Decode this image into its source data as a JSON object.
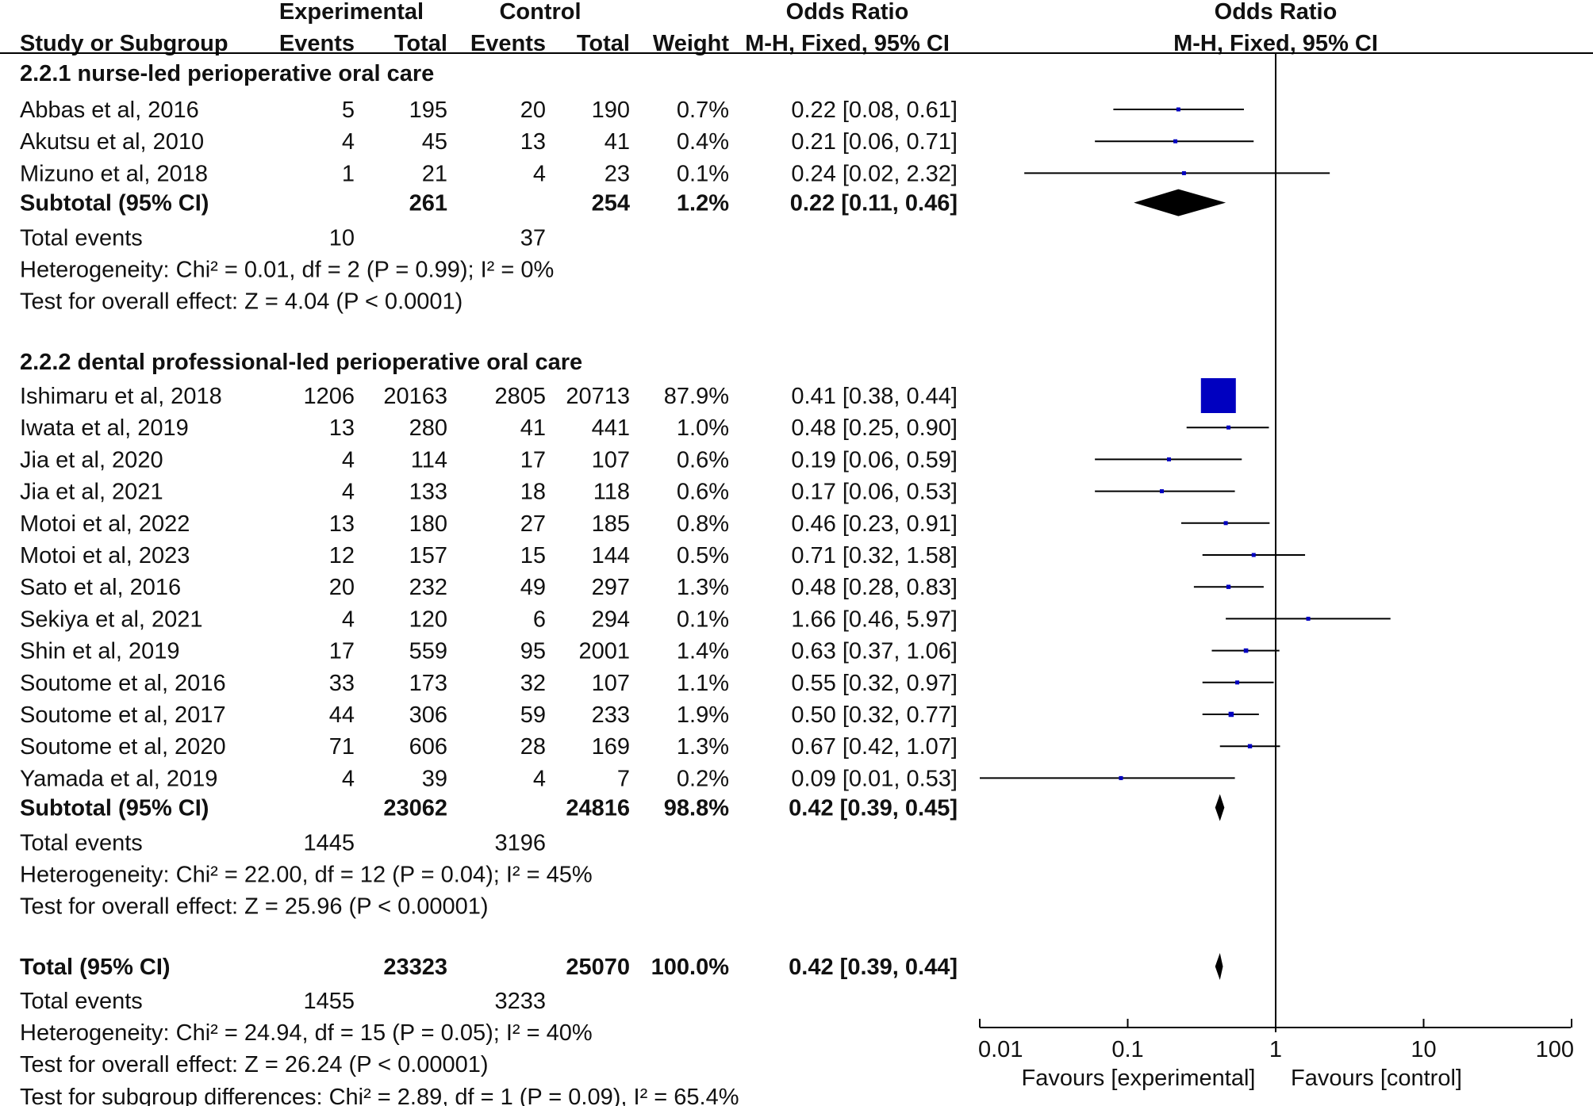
{
  "header": {
    "group_experimental": "Experimental",
    "group_control": "Control",
    "odds_ratio": "Odds Ratio",
    "odds_ratio_plot": "Odds Ratio",
    "study_or_subgroup": "Study or Subgroup",
    "events": "Events",
    "total": "Total",
    "control_events": "Events",
    "control_total": "Total",
    "weight": "Weight",
    "method": "M-H, Fixed, 95% CI",
    "method_plot": "M-H, Fixed, 95% CI"
  },
  "subgroups": [
    {
      "title": "2.2.1 nurse-led perioperative oral care",
      "studies": [
        {
          "name": "Abbas et al, 2016",
          "e_events": "5",
          "e_total": "195",
          "c_events": "20",
          "c_total": "190",
          "weight": "0.7%",
          "ci_text": "0.22 [0.08, 0.61]",
          "or": 0.22,
          "lo": 0.08,
          "hi": 0.61,
          "w": 0.7
        },
        {
          "name": "Akutsu et al, 2010",
          "e_events": "4",
          "e_total": "45",
          "c_events": "13",
          "c_total": "41",
          "weight": "0.4%",
          "ci_text": "0.21 [0.06, 0.71]",
          "or": 0.21,
          "lo": 0.06,
          "hi": 0.71,
          "w": 0.4
        },
        {
          "name": "Mizuno et al, 2018",
          "e_events": "1",
          "e_total": "21",
          "c_events": "4",
          "c_total": "23",
          "weight": "0.1%",
          "ci_text": "0.24 [0.02, 2.32]",
          "or": 0.24,
          "lo": 0.02,
          "hi": 2.32,
          "w": 0.1
        }
      ],
      "subtotal": {
        "label": "Subtotal (95% CI)",
        "e_total": "261",
        "c_total": "254",
        "weight": "1.2%",
        "ci_text": "0.22 [0.11, 0.46]",
        "or": 0.22,
        "lo": 0.11,
        "hi": 0.46
      },
      "total_events": {
        "label": "Total events",
        "e": "10",
        "c": "37"
      },
      "heterogeneity": "Heterogeneity: Chi² = 0.01, df = 2 (P = 0.99); I² = 0%",
      "overall_effect": "Test for overall effect: Z = 4.04 (P < 0.0001)"
    },
    {
      "title": "2.2.2 dental professional-led perioperative oral care",
      "studies": [
        {
          "name": "Ishimaru et al, 2018",
          "e_events": "1206",
          "e_total": "20163",
          "c_events": "2805",
          "c_total": "20713",
          "weight": "87.9%",
          "ci_text": "0.41 [0.38, 0.44]",
          "or": 0.41,
          "lo": 0.38,
          "hi": 0.44,
          "w": 87.9
        },
        {
          "name": "Iwata et al, 2019",
          "e_events": "13",
          "e_total": "280",
          "c_events": "41",
          "c_total": "441",
          "weight": "1.0%",
          "ci_text": "0.48 [0.25, 0.90]",
          "or": 0.48,
          "lo": 0.25,
          "hi": 0.9,
          "w": 1.0
        },
        {
          "name": "Jia et al, 2020",
          "e_events": "4",
          "e_total": "114",
          "c_events": "17",
          "c_total": "107",
          "weight": "0.6%",
          "ci_text": "0.19 [0.06, 0.59]",
          "or": 0.19,
          "lo": 0.06,
          "hi": 0.59,
          "w": 0.6
        },
        {
          "name": "Jia et al, 2021",
          "e_events": "4",
          "e_total": "133",
          "c_events": "18",
          "c_total": "118",
          "weight": "0.6%",
          "ci_text": "0.17 [0.06, 0.53]",
          "or": 0.17,
          "lo": 0.06,
          "hi": 0.53,
          "w": 0.6
        },
        {
          "name": "Motoi et al, 2022",
          "e_events": "13",
          "e_total": "180",
          "c_events": "27",
          "c_total": "185",
          "weight": "0.8%",
          "ci_text": "0.46 [0.23, 0.91]",
          "or": 0.46,
          "lo": 0.23,
          "hi": 0.91,
          "w": 0.8
        },
        {
          "name": "Motoi et al, 2023",
          "e_events": "12",
          "e_total": "157",
          "c_events": "15",
          "c_total": "144",
          "weight": "0.5%",
          "ci_text": "0.71 [0.32, 1.58]",
          "or": 0.71,
          "lo": 0.32,
          "hi": 1.58,
          "w": 0.5
        },
        {
          "name": "Sato et al, 2016",
          "e_events": "20",
          "e_total": "232",
          "c_events": "49",
          "c_total": "297",
          "weight": "1.3%",
          "ci_text": "0.48 [0.28, 0.83]",
          "or": 0.48,
          "lo": 0.28,
          "hi": 0.83,
          "w": 1.3
        },
        {
          "name": "Sekiya et al, 2021",
          "e_events": "4",
          "e_total": "120",
          "c_events": "6",
          "c_total": "294",
          "weight": "0.1%",
          "ci_text": "1.66 [0.46, 5.97]",
          "or": 1.66,
          "lo": 0.46,
          "hi": 5.97,
          "w": 0.1
        },
        {
          "name": "Shin et al, 2019",
          "e_events": "17",
          "e_total": "559",
          "c_events": "95",
          "c_total": "2001",
          "weight": "1.4%",
          "ci_text": "0.63 [0.37, 1.06]",
          "or": 0.63,
          "lo": 0.37,
          "hi": 1.06,
          "w": 1.4
        },
        {
          "name": "Soutome et al, 2016",
          "e_events": "33",
          "e_total": "173",
          "c_events": "32",
          "c_total": "107",
          "weight": "1.1%",
          "ci_text": "0.55 [0.32, 0.97]",
          "or": 0.55,
          "lo": 0.32,
          "hi": 0.97,
          "w": 1.1
        },
        {
          "name": "Soutome et al, 2017",
          "e_events": "44",
          "e_total": "306",
          "c_events": "59",
          "c_total": "233",
          "weight": "1.9%",
          "ci_text": "0.50 [0.32, 0.77]",
          "or": 0.5,
          "lo": 0.32,
          "hi": 0.77,
          "w": 1.9
        },
        {
          "name": "Soutome et al, 2020",
          "e_events": "71",
          "e_total": "606",
          "c_events": "28",
          "c_total": "169",
          "weight": "1.3%",
          "ci_text": "0.67 [0.42, 1.07]",
          "or": 0.67,
          "lo": 0.42,
          "hi": 1.07,
          "w": 1.3
        },
        {
          "name": "Yamada et al, 2019",
          "e_events": "4",
          "e_total": "39",
          "c_events": "4",
          "c_total": "7",
          "weight": "0.2%",
          "ci_text": "0.09 [0.01, 0.53]",
          "or": 0.09,
          "lo": 0.01,
          "hi": 0.53,
          "w": 0.2
        }
      ],
      "subtotal": {
        "label": "Subtotal (95% CI)",
        "e_total": "23062",
        "c_total": "24816",
        "weight": "98.8%",
        "ci_text": "0.42 [0.39, 0.45]",
        "or": 0.42,
        "lo": 0.39,
        "hi": 0.45
      },
      "total_events": {
        "label": "Total events",
        "e": "1445",
        "c": "3196"
      },
      "heterogeneity": "Heterogeneity: Chi² = 22.00, df = 12 (P = 0.04); I² = 45%",
      "overall_effect": "Test for overall effect: Z = 25.96 (P < 0.00001)"
    }
  ],
  "total": {
    "label": "Total (95% CI)",
    "e_total": "23323",
    "c_total": "25070",
    "weight": "100.0%",
    "ci_text": "0.42 [0.39, 0.44]",
    "or": 0.42,
    "lo": 0.39,
    "hi": 0.44
  },
  "total_events": {
    "label": "Total events",
    "e": "1455",
    "c": "3233"
  },
  "heterogeneity": "Heterogeneity: Chi² = 24.94, df = 15 (P = 0.05); I² = 40%",
  "overall_effect": "Test for overall effect: Z = 26.24 (P < 0.00001)",
  "subgroup_differences": "Test for subgroup differences: Chi² = 2.89, df = 1 (P = 0.09), I² = 65.4%",
  "axis": {
    "ticks": [
      0.01,
      0.1,
      1,
      10,
      100
    ],
    "tick_labels": [
      "0.01",
      "0.1",
      "1",
      "10",
      "100"
    ],
    "favours_left": "Favours [experimental]",
    "favours_right": "Favours [control]"
  },
  "colors": {
    "square": "#0000c0",
    "diamond": "#000000",
    "line": "#000000"
  },
  "chart_data": {
    "type": "forest",
    "title": "Odds Ratio M-H, Fixed, 95% CI",
    "scale": "log",
    "xlim": [
      0.01,
      100
    ],
    "null_line": 1,
    "studies": [
      {
        "name": "Abbas et al, 2016",
        "or": 0.22,
        "lo": 0.08,
        "hi": 0.61,
        "weight": 0.7
      },
      {
        "name": "Akutsu et al, 2010",
        "or": 0.21,
        "lo": 0.06,
        "hi": 0.71,
        "weight": 0.4
      },
      {
        "name": "Mizuno et al, 2018",
        "or": 0.24,
        "lo": 0.02,
        "hi": 2.32,
        "weight": 0.1
      },
      {
        "name": "Ishimaru et al, 2018",
        "or": 0.41,
        "lo": 0.38,
        "hi": 0.44,
        "weight": 87.9
      },
      {
        "name": "Iwata et al, 2019",
        "or": 0.48,
        "lo": 0.25,
        "hi": 0.9,
        "weight": 1.0
      },
      {
        "name": "Jia et al, 2020",
        "or": 0.19,
        "lo": 0.06,
        "hi": 0.59,
        "weight": 0.6
      },
      {
        "name": "Jia et al, 2021",
        "or": 0.17,
        "lo": 0.06,
        "hi": 0.53,
        "weight": 0.6
      },
      {
        "name": "Motoi et al, 2022",
        "or": 0.46,
        "lo": 0.23,
        "hi": 0.91,
        "weight": 0.8
      },
      {
        "name": "Motoi et al, 2023",
        "or": 0.71,
        "lo": 0.32,
        "hi": 1.58,
        "weight": 0.5
      },
      {
        "name": "Sato et al, 2016",
        "or": 0.48,
        "lo": 0.28,
        "hi": 0.83,
        "weight": 1.3
      },
      {
        "name": "Sekiya et al, 2021",
        "or": 1.66,
        "lo": 0.46,
        "hi": 5.97,
        "weight": 0.1
      },
      {
        "name": "Shin et al, 2019",
        "or": 0.63,
        "lo": 0.37,
        "hi": 1.06,
        "weight": 1.4
      },
      {
        "name": "Soutome et al, 2016",
        "or": 0.55,
        "lo": 0.32,
        "hi": 0.97,
        "weight": 1.1
      },
      {
        "name": "Soutome et al, 2017",
        "or": 0.5,
        "lo": 0.32,
        "hi": 0.77,
        "weight": 1.9
      },
      {
        "name": "Soutome et al, 2020",
        "or": 0.67,
        "lo": 0.42,
        "hi": 1.07,
        "weight": 1.3
      },
      {
        "name": "Yamada et al, 2019",
        "or": 0.09,
        "lo": 0.01,
        "hi": 0.53,
        "weight": 0.2
      }
    ],
    "subtotals": [
      {
        "name": "2.2.1 Subtotal",
        "or": 0.22,
        "lo": 0.11,
        "hi": 0.46
      },
      {
        "name": "2.2.2 Subtotal",
        "or": 0.42,
        "lo": 0.39,
        "hi": 0.45
      }
    ],
    "overall": {
      "name": "Total",
      "or": 0.42,
      "lo": 0.39,
      "hi": 0.44
    },
    "xlabel_left": "Favours [experimental]",
    "xlabel_right": "Favours [control]"
  }
}
